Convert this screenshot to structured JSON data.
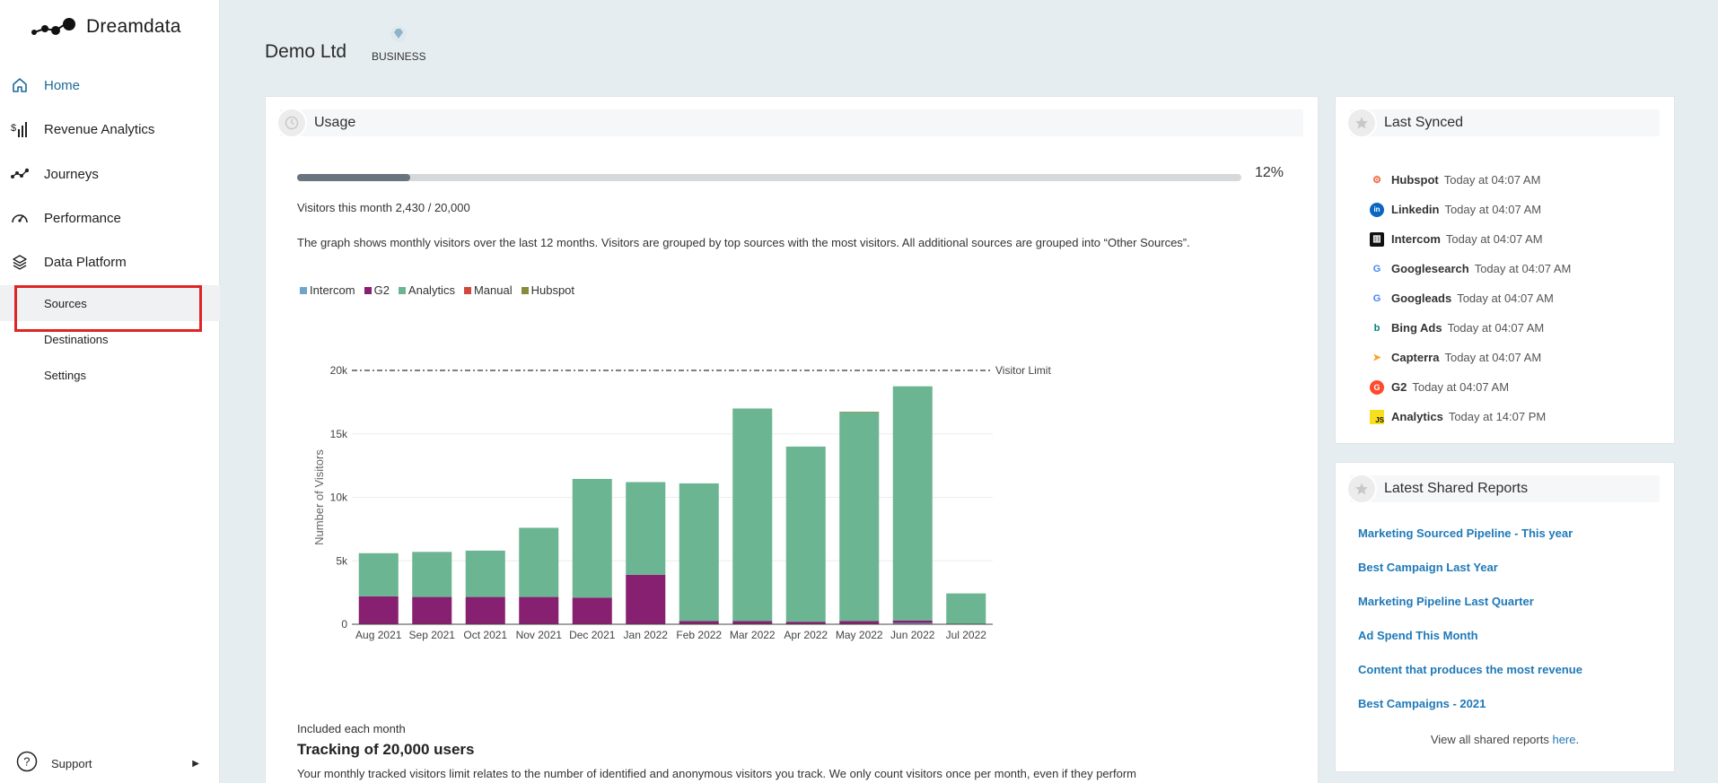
{
  "app": {
    "name": "Dreamdata"
  },
  "sidebar": {
    "items": [
      {
        "label": "Home",
        "icon": "home-icon"
      },
      {
        "label": "Revenue Analytics",
        "icon": "revenue-analytics-icon"
      },
      {
        "label": "Journeys",
        "icon": "journeys-icon"
      },
      {
        "label": "Performance",
        "icon": "performance-gauge-icon"
      },
      {
        "label": "Data Platform",
        "icon": "layers-icon"
      }
    ],
    "subitems": [
      {
        "label": "Sources"
      },
      {
        "label": "Destinations"
      },
      {
        "label": "Settings"
      }
    ],
    "support_label": "Support"
  },
  "header": {
    "org_name": "Demo Ltd",
    "plan_label": "BUSINESS"
  },
  "usage": {
    "title": "Usage",
    "progress_fraction": 0.12,
    "progress_pct_text": "12%",
    "visitors_text": "Visitors this month 2,430 / 20,000",
    "description": "The graph shows monthly visitors over the last 12 months. Visitors are grouped by top sources with the most visitors. All additional sources are grouped into “Other Sources”.",
    "included_text": "Included each month",
    "tracking_title": "Tracking of 20,000 users",
    "tracking_desc": "Your monthly tracked visitors limit relates to the number of identified and anonymous visitors you track. We only count visitors once per month, even if they perform"
  },
  "chart_data": {
    "type": "bar",
    "stacked": true,
    "ylabel": "Number of Visitors",
    "ylim": [
      0,
      20000
    ],
    "y_ticks": [
      "0",
      "5k",
      "10k",
      "15k",
      "20k"
    ],
    "categories": [
      "Aug 2021",
      "Sep 2021",
      "Oct 2021",
      "Nov 2021",
      "Dec 2021",
      "Jan 2022",
      "Feb 2022",
      "Mar 2022",
      "Apr 2022",
      "May 2022",
      "Jun 2022",
      "Jul 2022"
    ],
    "series": [
      {
        "name": "Intercom",
        "color": "#6fa5c8",
        "values": [
          0,
          0,
          0,
          0,
          0,
          0,
          0,
          0,
          0,
          0,
          100,
          0
        ]
      },
      {
        "name": "G2",
        "color": "#872070",
        "values": [
          2200,
          2150,
          2150,
          2150,
          2100,
          3900,
          250,
          250,
          200,
          250,
          200,
          0
        ]
      },
      {
        "name": "Analytics",
        "color": "#6bb592",
        "values": [
          3400,
          3550,
          3650,
          5450,
          9350,
          7300,
          10850,
          16750,
          13800,
          16450,
          18450,
          2430
        ]
      },
      {
        "name": "Manual",
        "color": "#d2483c",
        "values": [
          0,
          0,
          0,
          0,
          0,
          0,
          0,
          0,
          0,
          0,
          0,
          0
        ]
      },
      {
        "name": "Hubspot",
        "color": "#8a8a3a",
        "values": [
          0,
          0,
          0,
          0,
          0,
          0,
          0,
          0,
          0,
          50,
          0,
          0
        ]
      }
    ],
    "reference_line": {
      "value": 20000,
      "label": "Visitor Limit"
    }
  },
  "last_synced": {
    "title": "Last Synced",
    "items": [
      {
        "name": "Hubspot",
        "time": "Today at 04:07 AM",
        "icon": "hubspot-icon",
        "color": "#f0653f"
      },
      {
        "name": "Linkedin",
        "time": "Today at 04:07 AM",
        "icon": "linkedin-icon",
        "color": "#0a66c2"
      },
      {
        "name": "Intercom",
        "time": "Today at 04:07 AM",
        "icon": "intercom-icon",
        "color": "#111111"
      },
      {
        "name": "Googlesearch",
        "time": "Today at 04:07 AM",
        "icon": "google-icon",
        "color": "#4285f4"
      },
      {
        "name": "Googleads",
        "time": "Today at 04:07 AM",
        "icon": "google-icon",
        "color": "#4285f4"
      },
      {
        "name": "Bing Ads",
        "time": "Today at 04:07 AM",
        "icon": "bing-icon",
        "color": "#008373"
      },
      {
        "name": "Capterra",
        "time": "Today at 04:07 AM",
        "icon": "capterra-icon",
        "color": "#ff9d28"
      },
      {
        "name": "G2",
        "time": "Today at 04:07 AM",
        "icon": "g2-icon",
        "color": "#ff492c"
      },
      {
        "name": "Analytics",
        "time": "Today at 14:07 PM",
        "icon": "javascript-icon",
        "color": "#f7df1e"
      }
    ]
  },
  "shared_reports": {
    "title": "Latest Shared Reports",
    "items": [
      {
        "label": "Marketing Sourced Pipeline - This year"
      },
      {
        "label": "Best Campaign Last Year"
      },
      {
        "label": "Marketing Pipeline Last Quarter"
      },
      {
        "label": "Ad Spend This Month"
      },
      {
        "label": "Content that produces the most revenue"
      },
      {
        "label": "Best Campaigns - 2021"
      }
    ],
    "view_all_prefix": "View all shared reports ",
    "view_all_link": "here",
    "view_all_suffix": "."
  }
}
